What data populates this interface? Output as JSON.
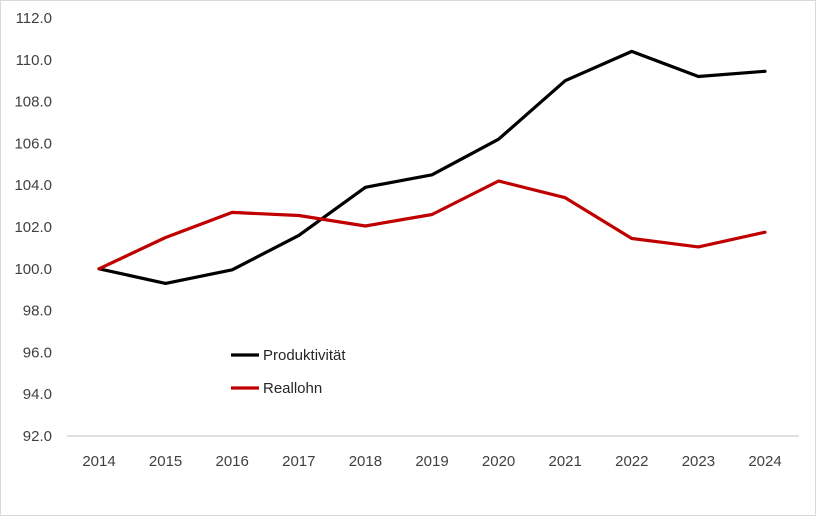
{
  "chart_data": {
    "type": "line",
    "title": "",
    "xlabel": "",
    "ylabel": "",
    "categories": [
      "2014",
      "2015",
      "2016",
      "2017",
      "2018",
      "2019",
      "2020",
      "2021",
      "2022",
      "2023",
      "2024"
    ],
    "ylim": [
      92.0,
      112.0
    ],
    "yticks": [
      "92.0",
      "94.0",
      "96.0",
      "98.0",
      "100.0",
      "102.0",
      "104.0",
      "106.0",
      "108.0",
      "110.0",
      "112.0"
    ],
    "grid": false,
    "legend_position": "lower-left inside plot",
    "series": [
      {
        "name": "Produktivität",
        "color": "#000000",
        "values": [
          100.0,
          99.3,
          99.95,
          101.6,
          103.9,
          104.5,
          106.2,
          109.0,
          110.4,
          109.2,
          109.45
        ]
      },
      {
        "name": "Reallohn",
        "color": "#c00000",
        "values": [
          100.0,
          101.5,
          102.7,
          102.55,
          102.05,
          102.6,
          104.2,
          103.4,
          101.45,
          101.05,
          101.75
        ]
      }
    ],
    "axis_color": "#bfbfbf",
    "text_color": "#404040"
  }
}
